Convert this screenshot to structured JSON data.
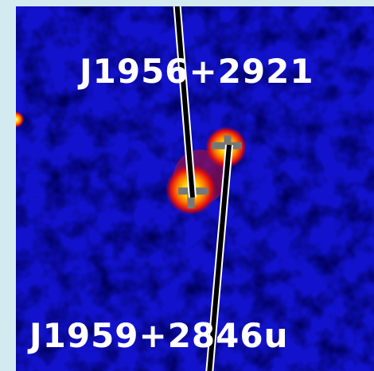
{
  "image": {
    "labels": [
      "J1956+2921",
      "J1959+2846u"
    ]
  }
}
